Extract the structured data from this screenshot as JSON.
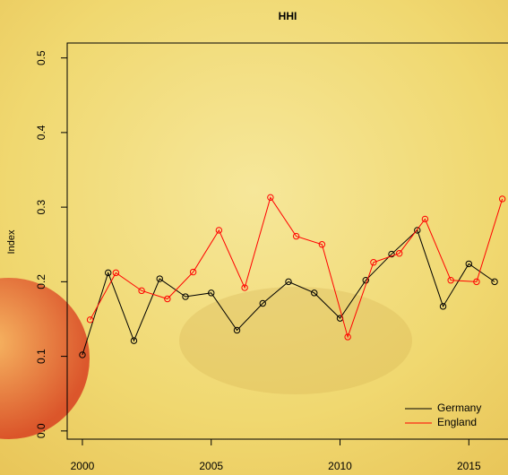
{
  "chart_data": {
    "type": "line",
    "title": "HHI",
    "y_label": "Index",
    "xlim": [
      1999.41,
      2016.52
    ],
    "ylim": [
      -0.011,
      0.52
    ],
    "xticks": [
      2000,
      2005,
      2010,
      2015
    ],
    "yticks": [
      {
        "value": 0,
        "label": "0.0"
      },
      0.1,
      0.2,
      0.3,
      0.4,
      0.5
    ],
    "legend": "bottom-right",
    "series": [
      {
        "name": "Germany",
        "color": "#000000",
        "x": [
          2000,
          2001,
          2002,
          2003,
          2004,
          2005,
          2006,
          2007,
          2008,
          2009,
          2010,
          2011,
          2012,
          2013,
          2014,
          2015,
          2016
        ],
        "values": [
          0.102,
          0.212,
          0.121,
          0.204,
          0.18,
          0.185,
          0.135,
          0.171,
          0.2,
          0.185,
          0.151,
          0.202,
          0.237,
          0.269,
          0.167,
          0.224,
          0.2
        ]
      },
      {
        "name": "England",
        "color": "#ff0000",
        "x": [
          2000.3,
          2001.3,
          2002.3,
          2003.3,
          2004.3,
          2005.3,
          2006.3,
          2007.3,
          2008.3,
          2009.3,
          2010.3,
          2011.3,
          2012.3,
          2013.3,
          2014.3,
          2015.3,
          2016.3
        ],
        "values": [
          0.149,
          0.212,
          0.188,
          0.177,
          0.213,
          0.269,
          0.192,
          0.313,
          0.261,
          0.25,
          0.126,
          0.226,
          0.238,
          0.284,
          0.202,
          0.2,
          0.311
        ]
      }
    ]
  }
}
